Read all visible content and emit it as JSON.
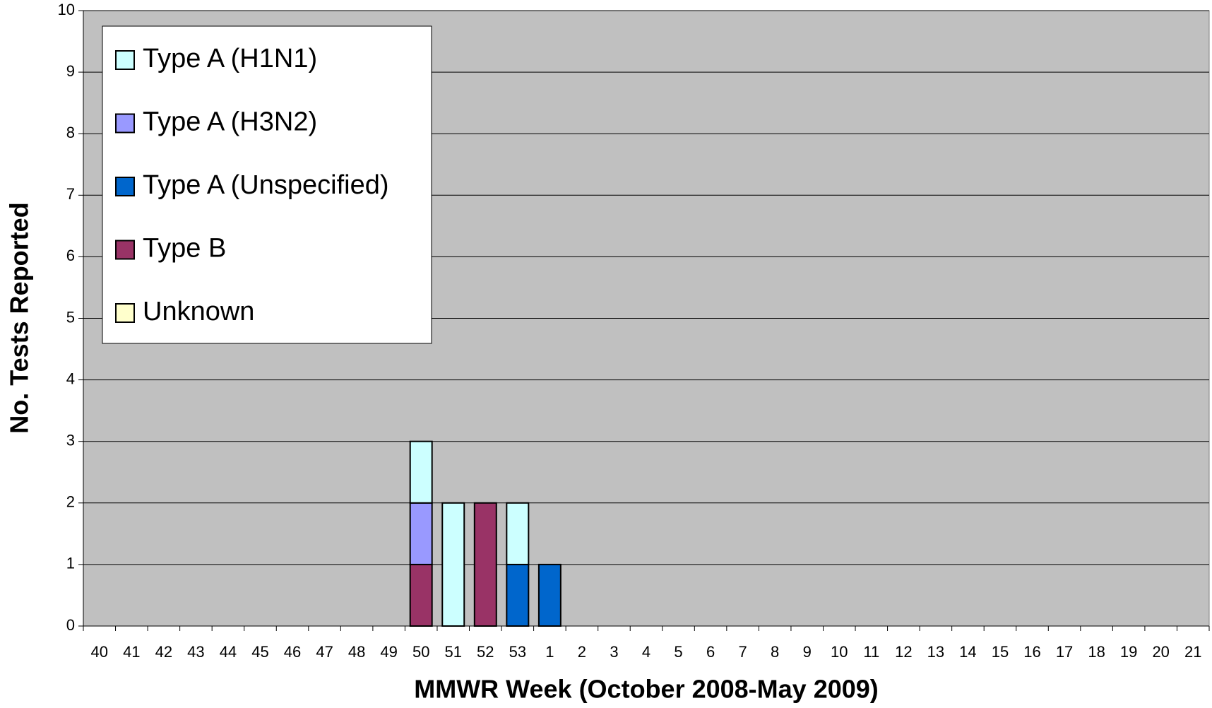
{
  "chart_data": {
    "type": "stacked_bar",
    "x_label": "MMWR Week (October 2008-May 2009)",
    "y_label": "No. Tests Reported",
    "categories": [
      "40",
      "41",
      "42",
      "43",
      "44",
      "45",
      "46",
      "47",
      "48",
      "49",
      "50",
      "51",
      "52",
      "53",
      "1",
      "2",
      "3",
      "4",
      "5",
      "6",
      "7",
      "8",
      "9",
      "10",
      "11",
      "12",
      "13",
      "14",
      "15",
      "16",
      "17",
      "18",
      "19",
      "20",
      "21"
    ],
    "series": [
      {
        "name": "Type A (H1N1)",
        "color": "#ccffff",
        "values": [
          0,
          0,
          0,
          0,
          0,
          0,
          0,
          0,
          0,
          0,
          1,
          2,
          0,
          1,
          0,
          0,
          0,
          0,
          0,
          0,
          0,
          0,
          0,
          0,
          0,
          0,
          0,
          0,
          0,
          0,
          0,
          0,
          0,
          0,
          0
        ]
      },
      {
        "name": "Type A (H3N2)",
        "color": "#9999ff",
        "values": [
          0,
          0,
          0,
          0,
          0,
          0,
          0,
          0,
          0,
          0,
          1,
          0,
          0,
          0,
          0,
          0,
          0,
          0,
          0,
          0,
          0,
          0,
          0,
          0,
          0,
          0,
          0,
          0,
          0,
          0,
          0,
          0,
          0,
          0,
          0
        ]
      },
      {
        "name": "Type A (Unspecified)",
        "color": "#0066cc",
        "values": [
          0,
          0,
          0,
          0,
          0,
          0,
          0,
          0,
          0,
          0,
          0,
          0,
          0,
          1,
          1,
          0,
          0,
          0,
          0,
          0,
          0,
          0,
          0,
          0,
          0,
          0,
          0,
          0,
          0,
          0,
          0,
          0,
          0,
          0,
          0
        ]
      },
      {
        "name": "Type B",
        "color": "#993366",
        "values": [
          0,
          0,
          0,
          0,
          0,
          0,
          0,
          0,
          0,
          0,
          1,
          0,
          2,
          0,
          0,
          0,
          0,
          0,
          0,
          0,
          0,
          0,
          0,
          0,
          0,
          0,
          0,
          0,
          0,
          0,
          0,
          0,
          0,
          0,
          0
        ]
      },
      {
        "name": "Unknown",
        "color": "#ffffcc",
        "values": [
          0,
          0,
          0,
          0,
          0,
          0,
          0,
          0,
          0,
          0,
          0,
          0,
          0,
          0,
          0,
          0,
          0,
          0,
          0,
          0,
          0,
          0,
          0,
          0,
          0,
          0,
          0,
          0,
          0,
          0,
          0,
          0,
          0,
          0,
          0
        ]
      }
    ],
    "ylim": [
      0,
      10
    ],
    "yticks": [
      0,
      1,
      2,
      3,
      4,
      5,
      6,
      7,
      8,
      9,
      10
    ],
    "grid": true,
    "plot_background": "#c0c0c0",
    "legend": "upper-left"
  }
}
